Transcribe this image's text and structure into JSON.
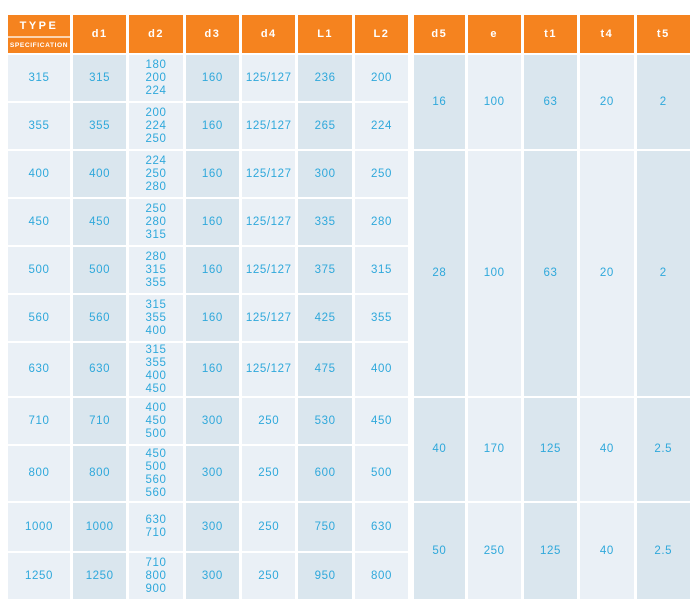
{
  "header": {
    "type_label": "TYPE",
    "spec_label": "SPECIFICATION",
    "columns": [
      "d1",
      "d2",
      "d3",
      "d4",
      "L1",
      "L2",
      "d5",
      "e",
      "t1",
      "t4",
      "t5"
    ]
  },
  "rows": [
    {
      "type": "315",
      "d1": "315",
      "d2": "180\n200\n224",
      "d3": "160",
      "d4": "125/127",
      "L1": "236",
      "L2": "200"
    },
    {
      "type": "355",
      "d1": "355",
      "d2": "200\n224\n250",
      "d3": "160",
      "d4": "125/127",
      "L1": "265",
      "L2": "224"
    },
    {
      "type": "400",
      "d1": "400",
      "d2": "224\n250\n280",
      "d3": "160",
      "d4": "125/127",
      "L1": "300",
      "L2": "250"
    },
    {
      "type": "450",
      "d1": "450",
      "d2": "250\n280\n315",
      "d3": "160",
      "d4": "125/127",
      "L1": "335",
      "L2": "280"
    },
    {
      "type": "500",
      "d1": "500",
      "d2": "280\n315\n355",
      "d3": "160",
      "d4": "125/127",
      "L1": "375",
      "L2": "315"
    },
    {
      "type": "560",
      "d1": "560",
      "d2": "315\n355\n400",
      "d3": "160",
      "d4": "125/127",
      "L1": "425",
      "L2": "355"
    },
    {
      "type": "630",
      "d1": "630",
      "d2": "315\n355\n400\n450",
      "d3": "160",
      "d4": "125/127",
      "L1": "475",
      "L2": "400"
    },
    {
      "type": "710",
      "d1": "710",
      "d2": "400\n450\n500",
      "d3": "300",
      "d4": "250",
      "L1": "530",
      "L2": "450"
    },
    {
      "type": "800",
      "d1": "800",
      "d2": "450\n500\n560\n560",
      "d3": "300",
      "d4": "250",
      "L1": "600",
      "L2": "500"
    },
    {
      "type": "1000",
      "d1": "1000",
      "d2": "630\n710",
      "d3": "300",
      "d4": "250",
      "L1": "750",
      "L2": "630"
    },
    {
      "type": "1250",
      "d1": "1250",
      "d2": "710\n800\n900",
      "d3": "300",
      "d4": "250",
      "L1": "950",
      "L2": "800"
    }
  ],
  "groups": [
    {
      "d5": "16",
      "e": "100",
      "t1": "63",
      "t4": "20",
      "t5": "2"
    },
    {
      "d5": "28",
      "e": "100",
      "t1": "63",
      "t4": "20",
      "t5": "2"
    },
    {
      "d5": "40",
      "e": "170",
      "t1": "125",
      "t4": "40",
      "t5": "2.5"
    },
    {
      "d5": "50",
      "e": "250",
      "t1": "125",
      "t4": "40",
      "t5": "2.5"
    }
  ],
  "colors": {
    "header_orange": "#F5831F",
    "cell_light": "#EAF0F6",
    "cell_dark": "#DAE6EE",
    "value_text": "#2FA8DB",
    "header_text": "#FFFFFF"
  }
}
